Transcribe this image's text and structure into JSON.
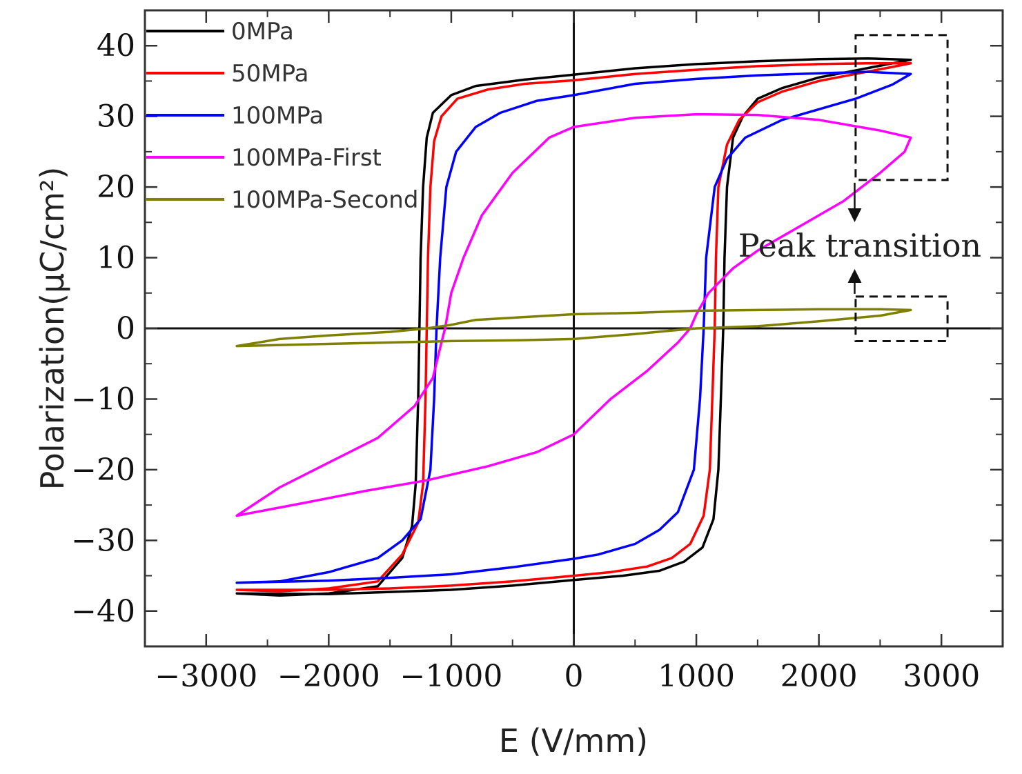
{
  "chart_data": {
    "type": "line",
    "title": "",
    "xlabel": "E (V/mm)",
    "ylabel": "Polarization(μC/cm²)",
    "xlim": [
      -3500,
      3500
    ],
    "ylim": [
      -45,
      45
    ],
    "xticks": [
      -3000,
      -2000,
      -1000,
      0,
      1000,
      2000,
      3000
    ],
    "yticks": [
      -40,
      -30,
      -20,
      -10,
      0,
      10,
      20,
      30,
      40
    ],
    "xtick_labels": [
      "−3000",
      "−2000",
      "−1000",
      "0",
      "1000",
      "2000",
      "3000"
    ],
    "ytick_labels": [
      "−40",
      "−30",
      "−20",
      "−10",
      "0",
      "10",
      "20",
      "30",
      "40"
    ],
    "grid": false,
    "legend_position": "top-left",
    "series": [
      {
        "name": "0MPa",
        "color": "#000000",
        "points": [
          [
            -2750,
            -37.5
          ],
          [
            -2400,
            -37.8
          ],
          [
            -2000,
            -37.5
          ],
          [
            -1600,
            -36.5
          ],
          [
            -1400,
            -32.5
          ],
          [
            -1320,
            -28
          ],
          [
            -1290,
            -22
          ],
          [
            -1270,
            -10
          ],
          [
            -1260,
            0
          ],
          [
            -1250,
            10
          ],
          [
            -1230,
            20
          ],
          [
            -1200,
            27
          ],
          [
            -1150,
            30.5
          ],
          [
            -1000,
            33
          ],
          [
            -800,
            34.3
          ],
          [
            -400,
            35.2
          ],
          [
            0,
            35.9
          ],
          [
            500,
            36.8
          ],
          [
            1000,
            37.4
          ],
          [
            1500,
            37.8
          ],
          [
            2000,
            38.1
          ],
          [
            2400,
            38.2
          ],
          [
            2750,
            38
          ],
          [
            2600,
            37.5
          ],
          [
            2300,
            36.5
          ],
          [
            2000,
            35.5
          ],
          [
            1700,
            34
          ],
          [
            1500,
            32.5
          ],
          [
            1380,
            30
          ],
          [
            1300,
            27
          ],
          [
            1250,
            20
          ],
          [
            1230,
            10
          ],
          [
            1220,
            0
          ],
          [
            1200,
            -10
          ],
          [
            1180,
            -20
          ],
          [
            1140,
            -27
          ],
          [
            1050,
            -31
          ],
          [
            900,
            -33
          ],
          [
            700,
            -34.3
          ],
          [
            400,
            -35
          ],
          [
            0,
            -35.6
          ],
          [
            -500,
            -36.4
          ],
          [
            -1000,
            -37
          ],
          [
            -1500,
            -37.3
          ],
          [
            -2000,
            -37.6
          ],
          [
            -2750,
            -37.5
          ]
        ]
      },
      {
        "name": "50MPa",
        "color": "#ff0000",
        "points": [
          [
            -2750,
            -37
          ],
          [
            -2400,
            -37.2
          ],
          [
            -2000,
            -36.8
          ],
          [
            -1600,
            -35.8
          ],
          [
            -1400,
            -32
          ],
          [
            -1270,
            -27.5
          ],
          [
            -1230,
            -22
          ],
          [
            -1210,
            -10
          ],
          [
            -1200,
            0
          ],
          [
            -1190,
            10
          ],
          [
            -1170,
            20
          ],
          [
            -1140,
            26.5
          ],
          [
            -1080,
            30
          ],
          [
            -950,
            32.5
          ],
          [
            -700,
            33.8
          ],
          [
            -400,
            34.6
          ],
          [
            0,
            35.1
          ],
          [
            500,
            36
          ],
          [
            1000,
            36.6
          ],
          [
            1500,
            37.1
          ],
          [
            2000,
            37.4
          ],
          [
            2400,
            37.5
          ],
          [
            2750,
            37.5
          ],
          [
            2600,
            37
          ],
          [
            2300,
            36
          ],
          [
            2000,
            35
          ],
          [
            1700,
            33.5
          ],
          [
            1500,
            32
          ],
          [
            1350,
            29.5
          ],
          [
            1250,
            26
          ],
          [
            1180,
            20
          ],
          [
            1160,
            10
          ],
          [
            1150,
            0
          ],
          [
            1130,
            -10
          ],
          [
            1110,
            -20
          ],
          [
            1060,
            -26.5
          ],
          [
            950,
            -30.5
          ],
          [
            800,
            -32.5
          ],
          [
            600,
            -33.7
          ],
          [
            300,
            -34.5
          ],
          [
            0,
            -35
          ],
          [
            -500,
            -35.8
          ],
          [
            -1000,
            -36.4
          ],
          [
            -1500,
            -36.8
          ],
          [
            -2000,
            -37
          ],
          [
            -2750,
            -37
          ]
        ]
      },
      {
        "name": "100MPa",
        "color": "#0000ff",
        "points": [
          [
            -2750,
            -36
          ],
          [
            -2400,
            -35.8
          ],
          [
            -2000,
            -34.5
          ],
          [
            -1600,
            -32.5
          ],
          [
            -1400,
            -30
          ],
          [
            -1250,
            -27
          ],
          [
            -1170,
            -20
          ],
          [
            -1140,
            -10
          ],
          [
            -1120,
            0
          ],
          [
            -1090,
            10
          ],
          [
            -1040,
            20
          ],
          [
            -960,
            25
          ],
          [
            -800,
            28.5
          ],
          [
            -600,
            30.5
          ],
          [
            -300,
            32.2
          ],
          [
            0,
            33
          ],
          [
            500,
            34.6
          ],
          [
            1000,
            35.3
          ],
          [
            1500,
            35.8
          ],
          [
            2000,
            36.1
          ],
          [
            2400,
            36.3
          ],
          [
            2750,
            36
          ],
          [
            2600,
            34.5
          ],
          [
            2300,
            32.5
          ],
          [
            2000,
            31
          ],
          [
            1700,
            29.5
          ],
          [
            1400,
            27
          ],
          [
            1250,
            24
          ],
          [
            1150,
            20
          ],
          [
            1080,
            10
          ],
          [
            1060,
            0
          ],
          [
            1030,
            -10
          ],
          [
            980,
            -20
          ],
          [
            850,
            -26
          ],
          [
            700,
            -28.5
          ],
          [
            500,
            -30.5
          ],
          [
            200,
            -32
          ],
          [
            0,
            -32.6
          ],
          [
            -500,
            -33.8
          ],
          [
            -1000,
            -34.8
          ],
          [
            -1500,
            -35.3
          ],
          [
            -2000,
            -35.7
          ],
          [
            -2750,
            -36
          ]
        ]
      },
      {
        "name": "100MPa-First",
        "color": "#ff00ff",
        "points": [
          [
            -2750,
            -26.5
          ],
          [
            -2400,
            -22.5
          ],
          [
            -2000,
            -19
          ],
          [
            -1600,
            -15.5
          ],
          [
            -1300,
            -11
          ],
          [
            -1150,
            -7
          ],
          [
            -1080,
            -2
          ],
          [
            -1050,
            0
          ],
          [
            -1000,
            5
          ],
          [
            -900,
            10
          ],
          [
            -750,
            16
          ],
          [
            -500,
            22
          ],
          [
            -200,
            27
          ],
          [
            0,
            28.5
          ],
          [
            500,
            29.8
          ],
          [
            1000,
            30.3
          ],
          [
            1500,
            30.2
          ],
          [
            2000,
            29.5
          ],
          [
            2500,
            28
          ],
          [
            2750,
            27
          ],
          [
            2700,
            25
          ],
          [
            2500,
            22
          ],
          [
            2200,
            18
          ],
          [
            1800,
            14
          ],
          [
            1500,
            11
          ],
          [
            1300,
            8.5
          ],
          [
            1100,
            5
          ],
          [
            1000,
            2
          ],
          [
            950,
            0
          ],
          [
            850,
            -2
          ],
          [
            600,
            -6
          ],
          [
            300,
            -10
          ],
          [
            0,
            -15
          ],
          [
            -300,
            -17.5
          ],
          [
            -700,
            -19.5
          ],
          [
            -1200,
            -21.5
          ],
          [
            -1700,
            -23
          ],
          [
            -2200,
            -24.7
          ],
          [
            -2750,
            -26.5
          ]
        ]
      },
      {
        "name": "100MPa-Second",
        "color": "#808000",
        "points": [
          [
            -2750,
            -2.5
          ],
          [
            -2400,
            -1.5
          ],
          [
            -2000,
            -1
          ],
          [
            -1500,
            -0.5
          ],
          [
            -1200,
            0
          ],
          [
            -1000,
            0.5
          ],
          [
            -800,
            1.2
          ],
          [
            -500,
            1.5
          ],
          [
            0,
            2
          ],
          [
            500,
            2.2
          ],
          [
            1000,
            2.5
          ],
          [
            1500,
            2.6
          ],
          [
            2000,
            2.7
          ],
          [
            2500,
            2.7
          ],
          [
            2750,
            2.6
          ],
          [
            2500,
            1.8
          ],
          [
            2000,
            1
          ],
          [
            1500,
            0.3
          ],
          [
            1000,
            0
          ],
          [
            800,
            -0.3
          ],
          [
            500,
            -0.8
          ],
          [
            0,
            -1.5
          ],
          [
            -500,
            -1.7
          ],
          [
            -1000,
            -1.8
          ],
          [
            -1500,
            -2
          ],
          [
            -2000,
            -2.2
          ],
          [
            -2750,
            -2.5
          ]
        ]
      }
    ],
    "annotations": {
      "label": "Peak transition",
      "boxes": [
        {
          "x": [
            2300,
            3050
          ],
          "y": [
            21,
            41.5
          ]
        },
        {
          "x": [
            2300,
            3050
          ],
          "y": [
            -1.8,
            4.5
          ]
        }
      ]
    }
  }
}
